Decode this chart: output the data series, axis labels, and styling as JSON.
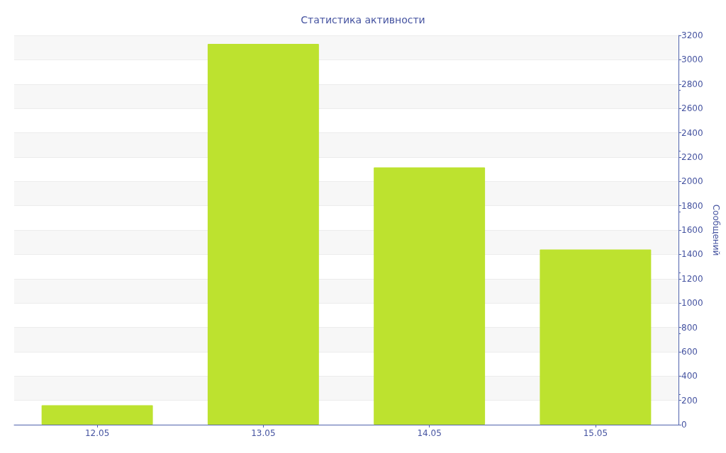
{
  "chart_data": {
    "type": "bar",
    "title": "Статистика активности",
    "ylabel": "Сообщений",
    "categories": [
      "12.05",
      "13.05",
      "14.05",
      "15.05"
    ],
    "values": [
      160,
      3130,
      2115,
      1440
    ],
    "color": "#bde22f",
    "ylim": [
      0,
      3200
    ],
    "yticks": [
      0,
      200,
      400,
      600,
      800,
      1000,
      1200,
      1400,
      1600,
      1800,
      2000,
      2200,
      2400,
      2600,
      2800,
      3000,
      3200
    ],
    "grid": "y"
  }
}
